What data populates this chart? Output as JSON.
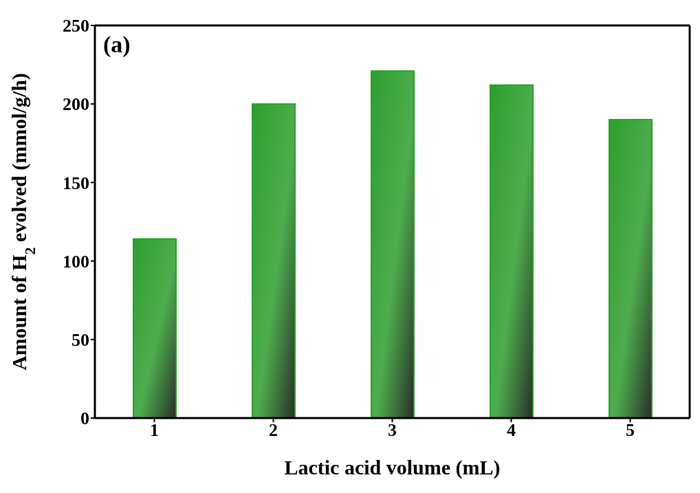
{
  "chart_data": {
    "type": "bar",
    "xlabel": "Lactic acid volume (mL)",
    "ylabel": "Amount of H$_{2}$ evolved (mmol/g/h)",
    "categories": [
      "1",
      "2",
      "3",
      "4",
      "5"
    ],
    "values": [
      114,
      200,
      221,
      212,
      190
    ],
    "color": "#2e9e2e",
    "ylim": [
      0,
      250
    ],
    "yticks": [
      0,
      50,
      100,
      150,
      200,
      250
    ],
    "grid": false,
    "legend": false,
    "annotations": [
      "(a)"
    ]
  }
}
